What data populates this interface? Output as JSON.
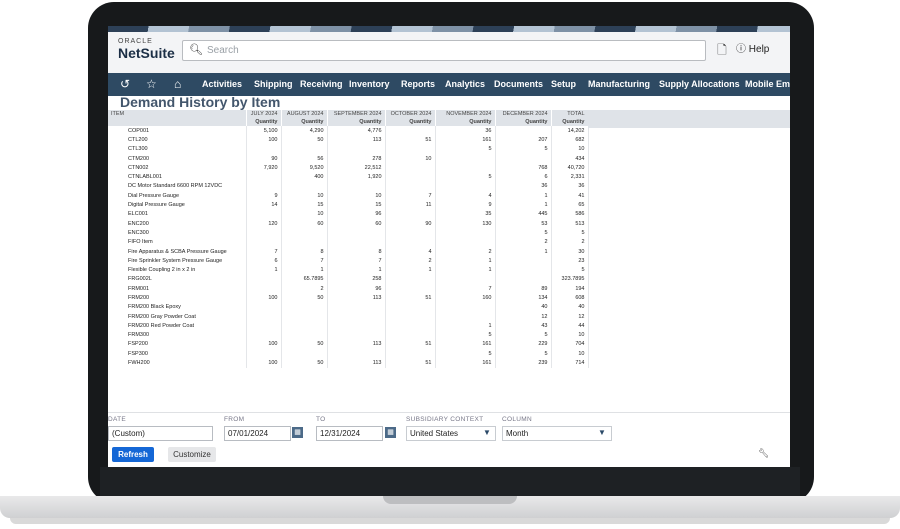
{
  "topbar": {
    "oracle": "ORACLE",
    "netsuite": "NetSuite",
    "search_placeholder": "Search",
    "help": "Help"
  },
  "nav": {
    "items": [
      "Activities",
      "Shipping",
      "Receiving",
      "Inventory",
      "Reports",
      "Analytics",
      "Documents",
      "Setup",
      "Manufacturing",
      "Supply Allocations",
      "Mobile Emul"
    ]
  },
  "page": {
    "title": "Demand History by Item"
  },
  "table": {
    "item_header": "ITEM",
    "months": [
      "JULY 2024",
      "AUGUST 2024",
      "SEPTEMBER 2024",
      "OCTOBER 2024",
      "NOVEMBER 2024",
      "DECEMBER 2024",
      "TOTAL"
    ],
    "sub": "Quantity",
    "rows": [
      [
        "COP001",
        "5,100",
        "4,290",
        "4,776",
        "",
        "36",
        "",
        "14,202"
      ],
      [
        "CTL200",
        "100",
        "50",
        "113",
        "51",
        "161",
        "207",
        "682"
      ],
      [
        "CTL300",
        "",
        "",
        "",
        "",
        "5",
        "5",
        "10"
      ],
      [
        "CTM200",
        "90",
        "56",
        "278",
        "10",
        "",
        "",
        "434"
      ],
      [
        "CTN002",
        "7,920",
        "9,520",
        "22,512",
        "",
        "",
        "768",
        "40,720"
      ],
      [
        "CTNLABL001",
        "",
        "400",
        "1,920",
        "",
        "5",
        "6",
        "2,331"
      ],
      [
        "DC Motor Standard 6600 RPM 12VDC",
        "",
        "",
        "",
        "",
        "",
        "36",
        "36"
      ],
      [
        "Dial Pressure Gauge",
        "9",
        "10",
        "10",
        "7",
        "4",
        "1",
        "41"
      ],
      [
        "Digital Pressure Gauge",
        "14",
        "15",
        "15",
        "11",
        "9",
        "1",
        "65"
      ],
      [
        "ELC001",
        "",
        "10",
        "96",
        "",
        "35",
        "445",
        "586"
      ],
      [
        "ENC200",
        "120",
        "60",
        "60",
        "90",
        "130",
        "53",
        "513"
      ],
      [
        "ENC300",
        "",
        "",
        "",
        "",
        "",
        "5",
        "5"
      ],
      [
        "FIFO Item",
        "",
        "",
        "",
        "",
        "",
        "2",
        "2"
      ],
      [
        "Fire Apparatus & SCBA Pressure Gauge",
        "7",
        "8",
        "8",
        "4",
        "2",
        "1",
        "30"
      ],
      [
        "Fire Sprinkler System Pressure Gauge",
        "6",
        "7",
        "7",
        "2",
        "1",
        "",
        "23"
      ],
      [
        "Flexible Coupling 2 in x 2 in",
        "1",
        "1",
        "1",
        "1",
        "1",
        "",
        "5"
      ],
      [
        "FRG002L",
        "",
        "65.7895",
        "258",
        "",
        "",
        "",
        "323.7895"
      ],
      [
        "FRM001",
        "",
        "2",
        "96",
        "",
        "7",
        "89",
        "194"
      ],
      [
        "FRM200",
        "100",
        "50",
        "113",
        "51",
        "160",
        "134",
        "608"
      ],
      [
        "FRM200 Black Epoxy",
        "",
        "",
        "",
        "",
        "",
        "40",
        "40"
      ],
      [
        "FRM200 Gray Powder Coat",
        "",
        "",
        "",
        "",
        "",
        "12",
        "12"
      ],
      [
        "FRM200 Red Powder Coat",
        "",
        "",
        "",
        "",
        "1",
        "43",
        "44"
      ],
      [
        "FRM300",
        "",
        "",
        "",
        "",
        "5",
        "5",
        "10"
      ],
      [
        "FSP200",
        "100",
        "50",
        "113",
        "51",
        "161",
        "229",
        "704"
      ],
      [
        "FSP300",
        "",
        "",
        "",
        "",
        "5",
        "5",
        "10"
      ],
      [
        "FWH200",
        "100",
        "50",
        "113",
        "51",
        "161",
        "239",
        "714"
      ]
    ]
  },
  "filters": {
    "date_label": "DATE",
    "date_value": "(Custom)",
    "from_label": "FROM",
    "from_value": "07/01/2024",
    "to_label": "TO",
    "to_value": "12/31/2024",
    "subsidiary_label": "SUBSIDIARY CONTEXT",
    "subsidiary_value": "United States",
    "column_label": "COLUMN",
    "column_value": "Month"
  },
  "buttons": {
    "refresh": "Refresh",
    "customize": "Customize"
  }
}
